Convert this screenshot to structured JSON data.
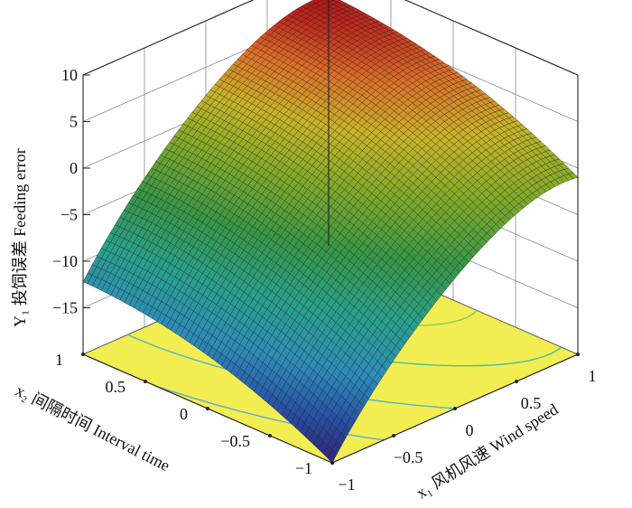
{
  "chart_data": {
    "type": "surface",
    "z_axis": {
      "label": "Y₁ 投饲误差  Feeding error",
      "ticks": [
        10,
        5,
        0,
        -5,
        -10,
        -15
      ],
      "tick_labels": [
        "10",
        "5",
        "0",
        "−5",
        "−10",
        "−15"
      ],
      "range": [
        -20,
        10
      ]
    },
    "x1_axis": {
      "label": "x₁ 风机风速 Wind speed",
      "ticks": [
        -1,
        -0.5,
        0,
        0.5,
        1
      ],
      "tick_labels": [
        "−1",
        "−0.5",
        "0",
        "0.5",
        "1"
      ],
      "range": [
        -1,
        1
      ]
    },
    "x2_axis": {
      "label": "x₂ 间隔时间 Interval time",
      "ticks": [
        -1,
        -0.5,
        0,
        0.5,
        1
      ],
      "tick_labels": [
        "−1",
        "−0.5",
        "0",
        "0.5",
        "1"
      ],
      "range": [
        -1,
        1
      ]
    },
    "surface_samples": {
      "x1": [
        -1,
        -0.5,
        0,
        0.5,
        1
      ],
      "x2": [
        -1,
        -0.5,
        0,
        0.5,
        1
      ],
      "y": [
        [
          -20.0,
          -11.9,
          -6.0,
          -2.0,
          -1.0
        ],
        [
          -16.7,
          -8.6,
          -2.7,
          1.3,
          2.4
        ],
        [
          -14.3,
          -6.2,
          -0.2,
          3.8,
          4.8
        ],
        [
          -12.8,
          -4.6,
          1.3,
          5.3,
          6.3
        ],
        [
          -12.2,
          -4.0,
          2.0,
          6.0,
          7.0
        ]
      ]
    },
    "floor_contours": true,
    "grid": true,
    "colormap": "viridis-like, yellow-orange-red at maximum"
  }
}
